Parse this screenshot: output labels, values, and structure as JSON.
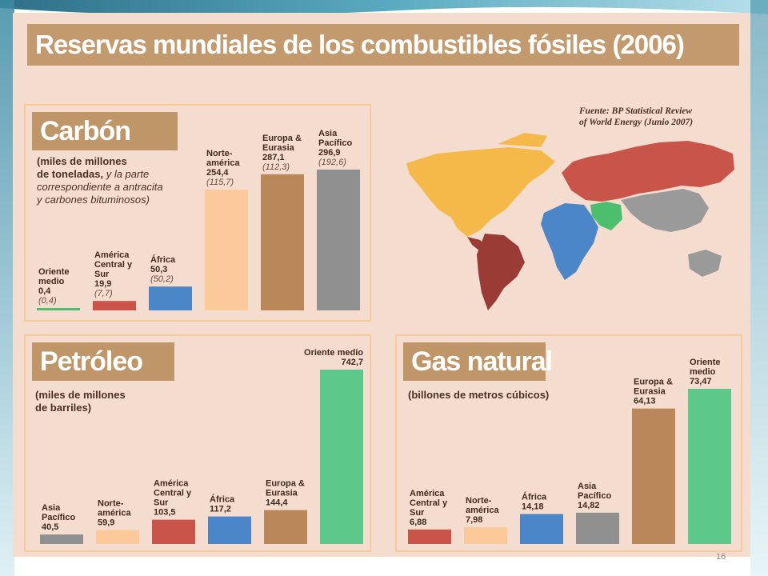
{
  "slide": {
    "page_number": "16",
    "colors": {
      "teal": "#4aa3b8",
      "dark": "#2f6f86",
      "light": "#9fd3df"
    }
  },
  "infographic": {
    "title": "Reservas mundiales de los combustibles fósiles (2006)",
    "source_line1": "Fuente: BP Statistical Review",
    "source_line2": "of World Energy (Junio 2007)",
    "map": {
      "icon": "world-map-icon",
      "region_colors": {
        "norteamerica": "#f5b94a",
        "america_central_sur": "#9b3b35",
        "africa": "#4a86c8",
        "oriente_medio": "#4bbf6e",
        "europa_eurasia": "#c9554a",
        "asia_pacifico": "#9a9a9a"
      }
    }
  },
  "chart_data": [
    {
      "id": "carbon",
      "type": "bar",
      "title": "Carbón",
      "subtitle_bold": [
        "(miles de millones",
        "de toneladas,"
      ],
      "subtitle_italic": [
        "y la parte",
        "correspondiente a antracita",
        "y carbones bituminosos)"
      ],
      "categories": [
        "Oriente medio",
        "América Central y Sur",
        "África",
        "Norteamérica",
        "Europa & Eurasia",
        "Asia Pacífico"
      ],
      "category_labels": [
        [
          "Oriente",
          "medio"
        ],
        [
          "América",
          "Central y",
          "Sur"
        ],
        [
          "África"
        ],
        [
          "Norte-",
          "américa"
        ],
        [
          "Europa &",
          "Eurasia"
        ],
        [
          "Asia",
          "Pacífico"
        ]
      ],
      "values": [
        0.4,
        19.9,
        50.3,
        254.4,
        287.1,
        296.9
      ],
      "value_labels": [
        "0,4",
        "19,9",
        "50,3",
        "254,4",
        "287,1",
        "296,9"
      ],
      "secondary_values": [
        0.4,
        7.7,
        50.2,
        115.7,
        112.3,
        192.6
      ],
      "secondary_labels": [
        "(0,4)",
        "(7,7)",
        "(50,2)",
        "(115,7)",
        "(112,3)",
        "(192,6)"
      ],
      "colors": [
        "#4bbf6e",
        "#c9554a",
        "#4a86c8",
        "#fcc99a",
        "#b9875a",
        "#909090"
      ]
    },
    {
      "id": "petroleo",
      "type": "bar",
      "title": "Petróleo",
      "subtitle_bold": [
        "(miles de millones",
        "de barriles)"
      ],
      "subtitle_italic": [],
      "categories": [
        "Asia Pacífico",
        "Norteamérica",
        "América Central y Sur",
        "África",
        "Europa & Eurasia",
        "Oriente medio"
      ],
      "category_labels": [
        [
          "Asia",
          "Pacífico"
        ],
        [
          "Norte-",
          "américa"
        ],
        [
          "América",
          "Central y",
          "Sur"
        ],
        [
          "África"
        ],
        [
          "Europa &",
          "Eurasia"
        ],
        [
          "Oriente medio"
        ]
      ],
      "values": [
        40.5,
        59.9,
        103.5,
        117.2,
        144.4,
        742.7
      ],
      "value_labels": [
        "40,5",
        "59,9",
        "103,5",
        "117,2",
        "144,4",
        "742,7"
      ],
      "colors": [
        "#909090",
        "#fcc99a",
        "#c9554a",
        "#4a86c8",
        "#b9875a",
        "#5cc98a"
      ]
    },
    {
      "id": "gas",
      "type": "bar",
      "title": "Gas natural",
      "subtitle_bold": [
        "(billones de metros cúbicos)"
      ],
      "subtitle_italic": [],
      "categories": [
        "América Central y Sur",
        "Norteamérica",
        "África",
        "Asia Pacífico",
        "Europa & Eurasia",
        "Oriente medio"
      ],
      "category_labels": [
        [
          "América",
          "Central y",
          "Sur"
        ],
        [
          "Norte-",
          "américa"
        ],
        [
          "África"
        ],
        [
          "Asia",
          "Pacífico"
        ],
        [
          "Europa &",
          "Eurasia"
        ],
        [
          "Oriente",
          "medio"
        ]
      ],
      "values": [
        6.88,
        7.98,
        14.18,
        14.82,
        64.13,
        73.47
      ],
      "value_labels": [
        "6,88",
        "7,98",
        "14,18",
        "14,82",
        "64,13",
        "73,47"
      ],
      "colors": [
        "#c9554a",
        "#fcc99a",
        "#4a86c8",
        "#909090",
        "#b9875a",
        "#5cc98a"
      ]
    }
  ]
}
